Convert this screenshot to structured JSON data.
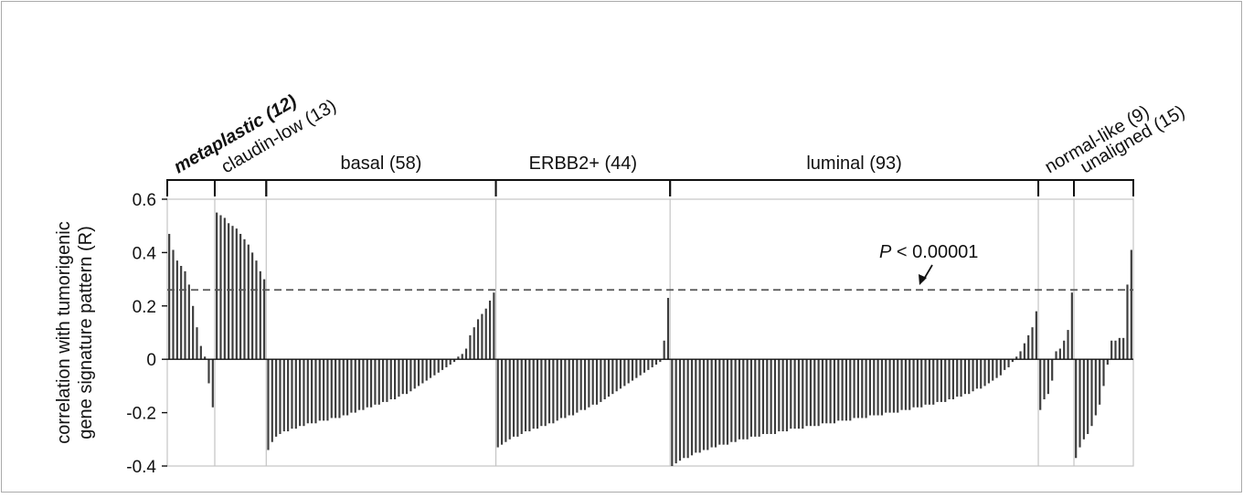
{
  "chart_data": {
    "type": "bar",
    "ylabel_line1": "correlation with tumorigenic",
    "ylabel_line2": "gene signature pattern (R)",
    "ylim": [
      -0.4,
      0.6
    ],
    "yticks": [
      {
        "value": 0.6,
        "label": "0.6"
      },
      {
        "value": 0.4,
        "label": "0.4"
      },
      {
        "value": 0.2,
        "label": "0.2"
      },
      {
        "value": 0,
        "label": "0"
      },
      {
        "value": -0.2,
        "label": "-0.2"
      },
      {
        "value": -0.4,
        "label": "-0.4"
      }
    ],
    "threshold": {
      "value": 0.26,
      "label_italic": "P",
      "label_rest": " < 0.00001"
    },
    "groups": [
      {
        "label": "(12)",
        "label_prefix": "metaplastic",
        "bold_italic": true,
        "rotated": true,
        "n": 12,
        "values": [
          0.47,
          0.41,
          0.37,
          0.35,
          0.33,
          0.28,
          0.2,
          0.12,
          0.05,
          0.01,
          -0.09,
          -0.18
        ]
      },
      {
        "label": "claudin-low (13)",
        "rotated": true,
        "n": 13,
        "values": [
          0.55,
          0.54,
          0.53,
          0.51,
          0.5,
          0.49,
          0.47,
          0.45,
          0.43,
          0.4,
          0.37,
          0.33,
          0.3
        ]
      },
      {
        "label": "basal (58)",
        "rotated": false,
        "n": 58,
        "values": [
          -0.34,
          -0.31,
          -0.29,
          -0.28,
          -0.27,
          -0.27,
          -0.26,
          -0.26,
          -0.25,
          -0.25,
          -0.24,
          -0.24,
          -0.24,
          -0.23,
          -0.23,
          -0.23,
          -0.22,
          -0.22,
          -0.22,
          -0.21,
          -0.21,
          -0.2,
          -0.2,
          -0.19,
          -0.19,
          -0.18,
          -0.18,
          -0.17,
          -0.17,
          -0.16,
          -0.16,
          -0.15,
          -0.15,
          -0.14,
          -0.13,
          -0.13,
          -0.12,
          -0.11,
          -0.1,
          -0.09,
          -0.08,
          -0.07,
          -0.06,
          -0.05,
          -0.04,
          -0.03,
          -0.02,
          -0.01,
          0.01,
          0.02,
          0.04,
          0.09,
          0.12,
          0.15,
          0.17,
          0.19,
          0.22,
          0.25
        ]
      },
      {
        "label": "ERBB2+ (44)",
        "rotated": false,
        "n": 44,
        "values": [
          -0.33,
          -0.32,
          -0.31,
          -0.3,
          -0.29,
          -0.29,
          -0.28,
          -0.27,
          -0.27,
          -0.26,
          -0.26,
          -0.25,
          -0.25,
          -0.24,
          -0.24,
          -0.23,
          -0.22,
          -0.22,
          -0.21,
          -0.21,
          -0.2,
          -0.19,
          -0.19,
          -0.18,
          -0.17,
          -0.17,
          -0.16,
          -0.15,
          -0.14,
          -0.13,
          -0.12,
          -0.11,
          -0.1,
          -0.09,
          -0.08,
          -0.07,
          -0.06,
          -0.05,
          -0.04,
          -0.03,
          -0.02,
          -0.01,
          0.07,
          0.23
        ]
      },
      {
        "label": "luminal (93)",
        "rotated": false,
        "n": 93,
        "values": [
          -0.4,
          -0.39,
          -0.38,
          -0.37,
          -0.37,
          -0.36,
          -0.35,
          -0.35,
          -0.34,
          -0.34,
          -0.33,
          -0.33,
          -0.32,
          -0.32,
          -0.32,
          -0.31,
          -0.31,
          -0.3,
          -0.3,
          -0.3,
          -0.29,
          -0.29,
          -0.29,
          -0.28,
          -0.28,
          -0.28,
          -0.28,
          -0.27,
          -0.27,
          -0.27,
          -0.26,
          -0.26,
          -0.26,
          -0.26,
          -0.25,
          -0.25,
          -0.25,
          -0.25,
          -0.24,
          -0.24,
          -0.24,
          -0.24,
          -0.23,
          -0.23,
          -0.23,
          -0.23,
          -0.22,
          -0.22,
          -0.22,
          -0.22,
          -0.21,
          -0.21,
          -0.21,
          -0.21,
          -0.2,
          -0.2,
          -0.2,
          -0.2,
          -0.19,
          -0.19,
          -0.19,
          -0.18,
          -0.18,
          -0.18,
          -0.17,
          -0.17,
          -0.17,
          -0.16,
          -0.16,
          -0.16,
          -0.15,
          -0.15,
          -0.14,
          -0.14,
          -0.13,
          -0.13,
          -0.12,
          -0.11,
          -0.11,
          -0.1,
          -0.09,
          -0.08,
          -0.07,
          -0.06,
          -0.04,
          -0.03,
          -0.01,
          0.01,
          0.03,
          0.06,
          0.09,
          0.12,
          0.18
        ]
      },
      {
        "label": "normal-like (9)",
        "rotated": true,
        "n": 9,
        "values": [
          -0.19,
          -0.15,
          -0.13,
          -0.08,
          0.03,
          0.04,
          0.07,
          0.11,
          0.25
        ]
      },
      {
        "label": "unaligned (15)",
        "rotated": true,
        "n": 15,
        "values": [
          -0.37,
          -0.33,
          -0.3,
          -0.28,
          -0.25,
          -0.21,
          -0.17,
          -0.1,
          -0.02,
          0.07,
          0.07,
          0.08,
          0.08,
          0.28,
          0.41
        ]
      }
    ]
  }
}
